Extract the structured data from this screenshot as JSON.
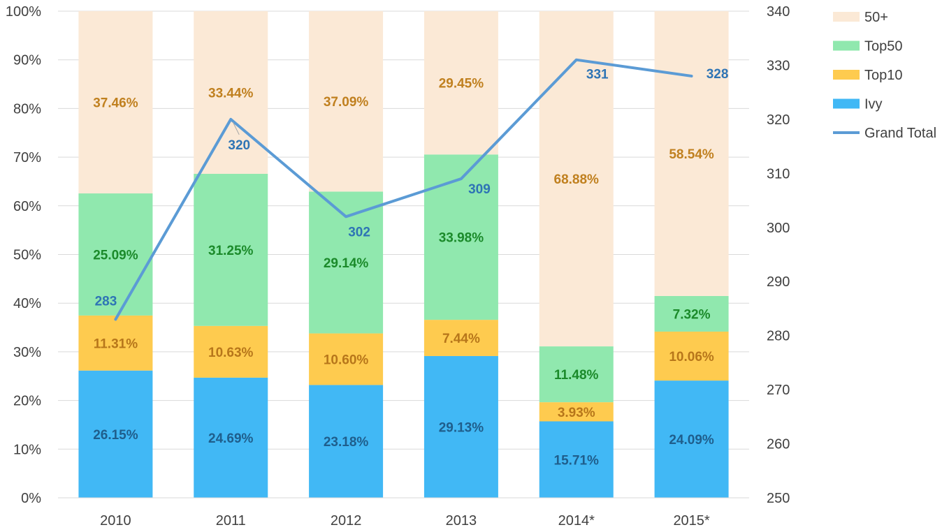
{
  "chart_data": {
    "type": "bar",
    "stacked": true,
    "categories": [
      "2010",
      "2011",
      "2012",
      "2013",
      "2014*",
      "2015*"
    ],
    "series": [
      {
        "name": "Ivy",
        "values": [
          26.15,
          24.69,
          23.18,
          29.13,
          15.71,
          24.09
        ],
        "labels": [
          "26.15%",
          "24.69%",
          "23.18%",
          "29.13%",
          "15.71%",
          "24.09%"
        ],
        "color": "#41b8f5",
        "label_color": "#1f5e8c"
      },
      {
        "name": "Top10",
        "values": [
          11.31,
          10.63,
          10.6,
          7.44,
          3.93,
          10.06
        ],
        "labels": [
          "11.31%",
          "10.63%",
          "10.60%",
          "7.44%",
          "3.93%",
          "10.06%"
        ],
        "color": "#fecb4f",
        "label_color": "#b7761a"
      },
      {
        "name": "Top50",
        "values": [
          25.09,
          31.25,
          29.14,
          33.98,
          11.48,
          7.32
        ],
        "labels": [
          "25.09%",
          "31.25%",
          "29.14%",
          "33.98%",
          "11.48%",
          "7.32%"
        ],
        "color": "#90e8ae",
        "label_color": "#1b8a2a"
      },
      {
        "name": "50+",
        "values": [
          37.46,
          33.44,
          37.09,
          29.45,
          68.88,
          58.54
        ],
        "labels": [
          "37.46%",
          "33.44%",
          "37.09%",
          "29.45%",
          "68.88%",
          "58.54%"
        ],
        "color": "#fbe9d6",
        "label_color": "#c0801f"
      }
    ],
    "line_series": {
      "name": "Grand Total",
      "values": [
        283,
        320,
        302,
        309,
        331,
        328
      ],
      "color": "#5b9bd5",
      "label_color": "#2e74b5"
    },
    "y_left": {
      "ylim": [
        0,
        100
      ],
      "ticks": [
        "0%",
        "10%",
        "20%",
        "30%",
        "40%",
        "50%",
        "60%",
        "70%",
        "80%",
        "90%",
        "100%"
      ]
    },
    "y_right": {
      "ylim": [
        250,
        340
      ],
      "ticks": [
        "250",
        "260",
        "270",
        "280",
        "290",
        "300",
        "310",
        "320",
        "330",
        "340"
      ]
    },
    "grid": true,
    "legend": {
      "position": "right",
      "order": [
        "50+",
        "Top50",
        "Top10",
        "Ivy",
        "Grand Total"
      ]
    }
  }
}
